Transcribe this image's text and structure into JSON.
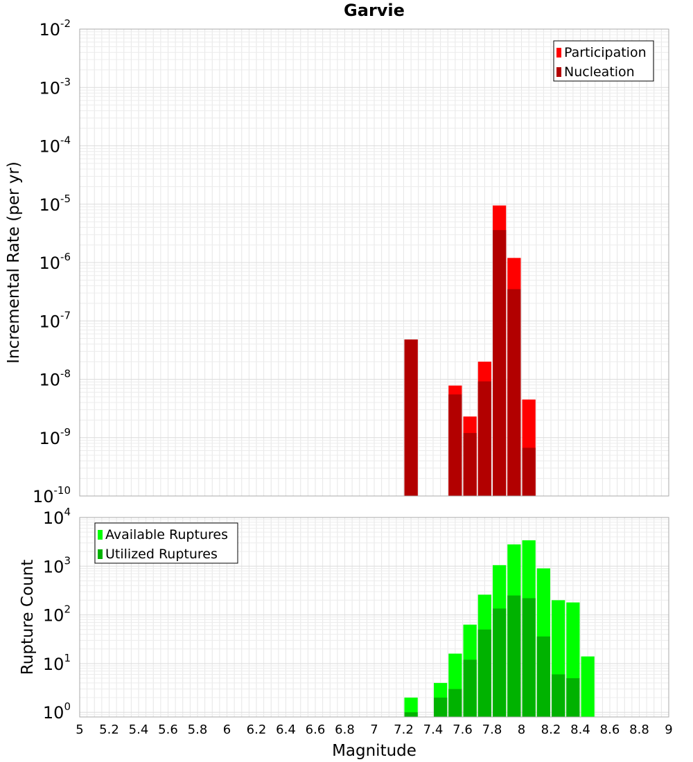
{
  "chart_data": [
    {
      "type": "bar",
      "title": "Garvie",
      "ylabel": "Incremental Rate (per yr)",
      "yscale": "log",
      "ylim": [
        1e-10,
        0.01
      ],
      "y_tick_labels": [
        "10^-10",
        "10^-9",
        "10^-8",
        "10^-7",
        "10^-6",
        "10^-5",
        "10^-4",
        "10^-3",
        "10^-2"
      ],
      "xlim": [
        5,
        9
      ],
      "bin_width": 0.1,
      "x": [
        7.25,
        7.55,
        7.65,
        7.75,
        7.85,
        7.95,
        8.05
      ],
      "series": [
        {
          "name": "Participation",
          "color": "#ff0000",
          "values": [
            4.8e-08,
            7.8e-09,
            2.3e-09,
            2e-08,
            9.5e-06,
            1.2e-06,
            4.5e-09
          ]
        },
        {
          "name": "Nucleation",
          "color": "#b20000",
          "values": [
            4.8e-08,
            5.5e-09,
            1.2e-09,
            9.2e-09,
            3.6e-06,
            3.5e-07,
            6.7e-10
          ]
        }
      ],
      "legend": "top-right",
      "grid": true
    },
    {
      "type": "bar",
      "ylabel": "Rupture Count",
      "xlabel": "Magnitude",
      "yscale": "log",
      "ylim": [
        0.8,
        10000
      ],
      "y_tick_labels": [
        "10^0",
        "10^1",
        "10^2",
        "10^3",
        "10^4"
      ],
      "xlim": [
        5,
        9
      ],
      "x_tick_labels": [
        "5",
        "5.2",
        "5.4",
        "5.6",
        "5.8",
        "6",
        "6.2",
        "6.4",
        "6.6",
        "6.8",
        "7",
        "7.2",
        "7.4",
        "7.6",
        "7.8",
        "8",
        "8.2",
        "8.4",
        "8.6",
        "8.8",
        "9"
      ],
      "bin_width": 0.1,
      "x": [
        7.25,
        7.45,
        7.55,
        7.65,
        7.75,
        7.85,
        7.95,
        8.05,
        8.15,
        8.25,
        8.35,
        8.45
      ],
      "series": [
        {
          "name": "Available Ruptures",
          "color": "#00ff00",
          "values": [
            2,
            4,
            16,
            63,
            260,
            1050,
            2800,
            3400,
            900,
            200,
            180,
            14
          ]
        },
        {
          "name": "Utilized Ruptures",
          "color": "#00b200",
          "values": [
            1,
            2,
            3,
            12,
            50,
            135,
            250,
            220,
            36,
            6,
            5,
            0
          ]
        }
      ],
      "legend": "top-left",
      "grid": true
    }
  ]
}
